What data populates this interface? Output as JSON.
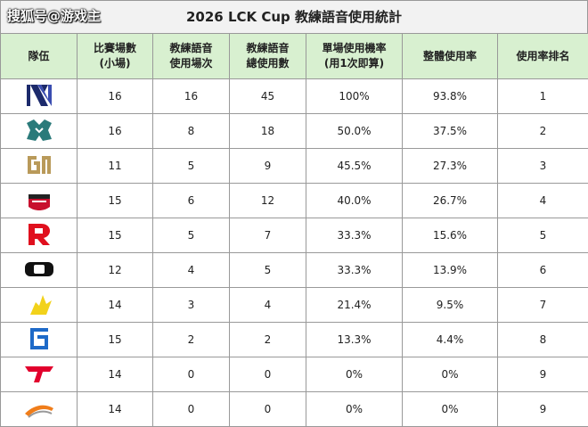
{
  "watermark": "搜狐号@游戏主",
  "title": "2026 LCK Cup 教練語音使用統計",
  "table": {
    "headers": [
      [
        "隊伍"
      ],
      [
        "比賽場數",
        "(小場)"
      ],
      [
        "教練語音",
        "使用場次"
      ],
      [
        "教練語音",
        "總使用數"
      ],
      [
        "單場使用機率",
        "(用1次即算)"
      ],
      [
        "整體使用率"
      ],
      [
        "使用率排名"
      ]
    ],
    "rows": [
      [
        "16",
        "16",
        "45",
        "100%",
        "93.8%",
        "1"
      ],
      [
        "16",
        "8",
        "18",
        "50.0%",
        "37.5%",
        "2"
      ],
      [
        "11",
        "5",
        "9",
        "45.5%",
        "27.3%",
        "3"
      ],
      [
        "15",
        "6",
        "12",
        "40.0%",
        "26.7%",
        "4"
      ],
      [
        "15",
        "5",
        "7",
        "33.3%",
        "15.6%",
        "5"
      ],
      [
        "12",
        "4",
        "5",
        "33.3%",
        "13.9%",
        "6"
      ],
      [
        "14",
        "3",
        "4",
        "21.4%",
        "9.5%",
        "7"
      ],
      [
        "15",
        "2",
        "2",
        "13.3%",
        "4.4%",
        "8"
      ],
      [
        "14",
        "0",
        "0",
        "0%",
        "0%",
        "9"
      ],
      [
        "14",
        "0",
        "0",
        "0%",
        "0%",
        "9"
      ]
    ]
  }
}
